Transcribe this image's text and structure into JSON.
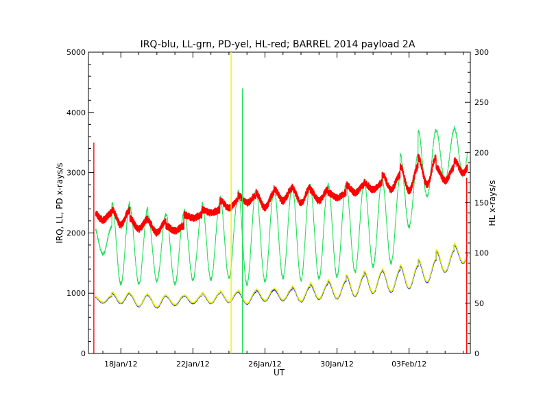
{
  "chart_data": {
    "type": "line",
    "title": "IRQ-blu, LL-grn, PD-yel, HL-red; BARREL 2014 payload 2A",
    "xlabel": "UT",
    "ylabel_left": "IRQ, LL, PD x-rays/s",
    "ylabel_right": "HL x-rays/s",
    "x_ticks": [
      "18Jan/12",
      "22Jan/12",
      "26Jan/12",
      "30Jan/12",
      "03Feb/12"
    ],
    "x_tick_days": [
      18,
      22,
      26,
      30,
      34
    ],
    "xlim_days": [
      16.2,
      37.4
    ],
    "ylim_left": [
      0,
      5000
    ],
    "ylim_right": [
      0,
      300
    ],
    "yticks_left": [
      "0",
      "1000",
      "2000",
      "3000",
      "4000",
      "5000"
    ],
    "yticks_right": [
      "0",
      "50",
      "100",
      "150",
      "200",
      "250",
      "300"
    ],
    "grid": false,
    "series": [
      {
        "name": "IRQ",
        "color": "#1f3fd0",
        "axis": "left",
        "note_values": "diurnal oscillation, daily max and min in x-rays/s",
        "daily_max": [
          950,
          1000,
          980,
          960,
          950,
          960,
          1000,
          1020,
          1020,
          1050,
          1060,
          1100,
          1150,
          1200,
          1290,
          1350,
          1380,
          1450,
          1550,
          1700,
          1800
        ],
        "daily_min": [
          840,
          830,
          780,
          760,
          800,
          830,
          830,
          850,
          820,
          870,
          880,
          860,
          900,
          910,
          950,
          1000,
          1020,
          1080,
          1180,
          1350,
          1500
        ]
      },
      {
        "name": "LL",
        "color": "#22e05a",
        "axis": "left",
        "daily_max": [
          2100,
          2500,
          2420,
          2300,
          2320,
          2380,
          2500,
          2600,
          2700,
          2700,
          2740,
          2800,
          2790,
          2800,
          2800,
          2870,
          2900,
          3300,
          3700,
          3700,
          3750
        ],
        "daily_min": [
          1650,
          1150,
          1150,
          1200,
          1150,
          1220,
          1230,
          1250,
          1150,
          1200,
          1250,
          1220,
          1250,
          1280,
          1350,
          1450,
          1500,
          2100,
          2600,
          2850,
          2950
        ]
      },
      {
        "name": "PD",
        "color": "#f0f000",
        "axis": "left",
        "daily_max": [
          960,
          1020,
          990,
          970,
          960,
          970,
          1010,
          1030,
          1040,
          1070,
          1080,
          1120,
          1170,
          1220,
          1310,
          1370,
          1400,
          1470,
          1570,
          1720,
          1820
        ],
        "daily_min": [
          850,
          840,
          790,
          770,
          810,
          840,
          840,
          860,
          830,
          880,
          890,
          870,
          910,
          920,
          960,
          1010,
          1030,
          1090,
          1190,
          1360,
          1510
        ]
      },
      {
        "name": "HL",
        "color": "#ff0000",
        "axis": "right",
        "daily_max": [
          140,
          143,
          134,
          132,
          127,
          138,
          143,
          152,
          157,
          160,
          164,
          165,
          163,
          160,
          168,
          170,
          178,
          186,
          195,
          185,
          192
        ],
        "daily_min": [
          133,
          128,
          124,
          120,
          122,
          135,
          140,
          145,
          150,
          145,
          152,
          150,
          152,
          155,
          160,
          163,
          163,
          162,
          168,
          172,
          180
        ]
      }
    ],
    "day_starts": [
      16.5,
      17.5,
      18.5,
      19.5,
      20.5,
      21.5,
      22.5,
      23.5,
      24.5,
      25.5,
      26.5,
      27.5,
      28.5,
      29.5,
      30.5,
      31.5,
      32.5,
      33.5,
      34.5,
      35.5,
      36.5
    ],
    "spikes": [
      {
        "series": "PD",
        "x_day": 24.12,
        "value": 5000
      },
      {
        "series": "LL",
        "x_day": 24.75,
        "value": 4400
      },
      {
        "series": "HL",
        "x_day": 16.5,
        "value": 210
      },
      {
        "series": "HL",
        "x_day": 37.2,
        "value": 175
      }
    ]
  }
}
